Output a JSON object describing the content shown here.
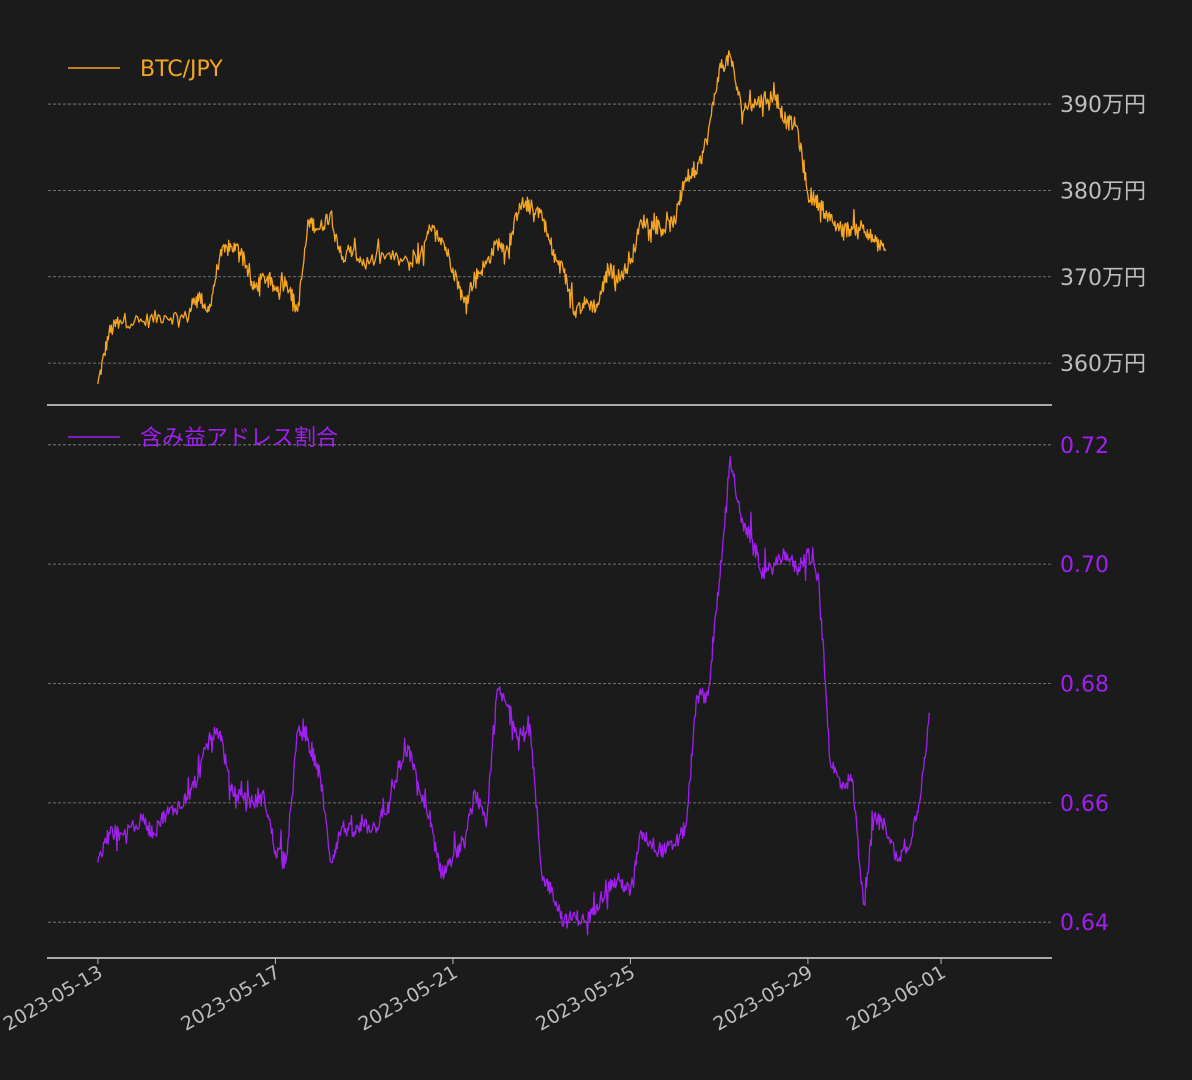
{
  "chart_data": [
    {
      "type": "line",
      "panel": "top",
      "color": "#f5a623",
      "series": [
        {
          "name": "BTC/JPY"
        }
      ],
      "yticks": [
        360,
        370,
        380,
        390
      ],
      "ytick_labels": [
        "360万円",
        "370万円",
        "380万円",
        "390万円"
      ],
      "ylim": [
        355.5,
        399.5
      ],
      "anchors": [
        [
          "2023-05-13",
          357.6
        ],
        [
          "2023-05-13T06:00",
          363.5
        ],
        [
          "2023-05-13T12:00",
          365.0
        ],
        [
          "2023-05-14",
          364.8
        ],
        [
          "2023-05-14T12:00",
          365.5
        ],
        [
          "2023-05-15",
          365.2
        ],
        [
          "2023-05-15T06:00",
          368.0
        ],
        [
          "2023-05-15T12:00",
          366.0
        ],
        [
          "2023-05-15T18:00",
          372.5
        ],
        [
          "2023-05-16",
          373.5
        ],
        [
          "2023-05-16T06:00",
          373.0
        ],
        [
          "2023-05-16T12:00",
          368.5
        ],
        [
          "2023-05-16T18:00",
          370.0
        ],
        [
          "2023-05-17",
          368.5
        ],
        [
          "2023-05-17T06:00",
          369.5
        ],
        [
          "2023-05-17T12:00",
          366.0
        ],
        [
          "2023-05-17T18:00",
          376.5
        ],
        [
          "2023-05-18",
          375.5
        ],
        [
          "2023-05-18T06:00",
          377.5
        ],
        [
          "2023-05-18T12:00",
          372.0
        ],
        [
          "2023-05-18T18:00",
          373.0
        ],
        [
          "2023-05-19",
          371.5
        ],
        [
          "2023-05-19T12:00",
          372.5
        ],
        [
          "2023-05-20",
          371.5
        ],
        [
          "2023-05-20T06:00",
          372.0
        ],
        [
          "2023-05-20T12:00",
          375.5
        ],
        [
          "2023-05-20T18:00",
          374.5
        ],
        [
          "2023-05-21",
          371.0
        ],
        [
          "2023-05-21T06:00",
          367.0
        ],
        [
          "2023-05-21T12:00",
          370.0
        ],
        [
          "2023-05-21T18:00",
          371.5
        ],
        [
          "2023-05-22",
          374.0
        ],
        [
          "2023-05-22T06:00",
          373.0
        ],
        [
          "2023-05-22T12:00",
          378.5
        ],
        [
          "2023-05-22T18:00",
          378.0
        ],
        [
          "2023-05-23",
          377.5
        ],
        [
          "2023-05-23T06:00",
          372.5
        ],
        [
          "2023-05-23T12:00",
          370.5
        ],
        [
          "2023-05-23T18:00",
          366.0
        ],
        [
          "2023-05-24",
          367.0
        ],
        [
          "2023-05-24T06:00",
          366.5
        ],
        [
          "2023-05-24T12:00",
          371.0
        ],
        [
          "2023-05-24T18:00",
          370.0
        ],
        [
          "2023-05-25",
          371.5
        ],
        [
          "2023-05-25T06:00",
          376.5
        ],
        [
          "2023-05-25T12:00",
          376.0
        ],
        [
          "2023-05-25T18:00",
          375.5
        ],
        [
          "2023-05-26",
          376.5
        ],
        [
          "2023-05-26T06:00",
          381.5
        ],
        [
          "2023-05-26T12:00",
          382.0
        ],
        [
          "2023-05-26T18:00",
          386.5
        ],
        [
          "2023-05-27",
          394.0
        ],
        [
          "2023-05-27T06:00",
          395.5
        ],
        [
          "2023-05-27T12:00",
          389.5
        ],
        [
          "2023-05-27T18:00",
          390.0
        ],
        [
          "2023-05-28",
          390.5
        ],
        [
          "2023-05-28T06:00",
          391.0
        ],
        [
          "2023-05-28T12:00",
          388.0
        ],
        [
          "2023-05-28T18:00",
          387.5
        ],
        [
          "2023-05-29",
          379.5
        ],
        [
          "2023-05-29T06:00",
          378.5
        ],
        [
          "2023-05-29T12:00",
          376.5
        ],
        [
          "2023-05-29T18:00",
          375.5
        ],
        [
          "2023-05-30",
          375.5
        ],
        [
          "2023-05-30T06:00",
          376.0
        ],
        [
          "2023-05-30T12:00",
          374.0
        ],
        [
          "2023-05-30T18:00",
          373.0
        ]
      ]
    },
    {
      "type": "line",
      "panel": "bottom",
      "color": "#a020f0",
      "series": [
        {
          "name": "含み益アドレス割合"
        }
      ],
      "yticks": [
        0.64,
        0.66,
        0.68,
        0.7,
        0.72
      ],
      "ytick_labels": [
        "0.64",
        "0.66",
        "0.68",
        "0.70",
        "0.72"
      ],
      "ylim": [
        0.6345,
        0.7255
      ],
      "anchors": [
        [
          "2023-05-13",
          0.65
        ],
        [
          "2023-05-13T06:00",
          0.655
        ],
        [
          "2023-05-13T12:00",
          0.655
        ],
        [
          "2023-05-14",
          0.657
        ],
        [
          "2023-05-14T06:00",
          0.655
        ],
        [
          "2023-05-14T12:00",
          0.658
        ],
        [
          "2023-05-14T18:00",
          0.659
        ],
        [
          "2023-05-15",
          0.661
        ],
        [
          "2023-05-15T06:00",
          0.664
        ],
        [
          "2023-05-15T12:00",
          0.671
        ],
        [
          "2023-05-15T18:00",
          0.672
        ],
        [
          "2023-05-16",
          0.662
        ],
        [
          "2023-05-16T06:00",
          0.661
        ],
        [
          "2023-05-16T12:00",
          0.66
        ],
        [
          "2023-05-16T18:00",
          0.661
        ],
        [
          "2023-05-17",
          0.652
        ],
        [
          "2023-05-17T06:00",
          0.651
        ],
        [
          "2023-05-17T12:00",
          0.672
        ],
        [
          "2023-05-17T18:00",
          0.67
        ],
        [
          "2023-05-18",
          0.665
        ],
        [
          "2023-05-18T06:00",
          0.65
        ],
        [
          "2023-05-18T12:00",
          0.656
        ],
        [
          "2023-05-18T18:00",
          0.655
        ],
        [
          "2023-05-19",
          0.656
        ],
        [
          "2023-05-19T06:00",
          0.656
        ],
        [
          "2023-05-19T12:00",
          0.658
        ],
        [
          "2023-05-19T18:00",
          0.665
        ],
        [
          "2023-05-20",
          0.669
        ],
        [
          "2023-05-20T06:00",
          0.662
        ],
        [
          "2023-05-20T12:00",
          0.656
        ],
        [
          "2023-05-20T18:00",
          0.648
        ],
        [
          "2023-05-21",
          0.651
        ],
        [
          "2023-05-21T06:00",
          0.653
        ],
        [
          "2023-05-21T12:00",
          0.662
        ],
        [
          "2023-05-21T18:00",
          0.656
        ],
        [
          "2023-05-22",
          0.679
        ],
        [
          "2023-05-22T06:00",
          0.676
        ],
        [
          "2023-05-22T12:00",
          0.671
        ],
        [
          "2023-05-22T18:00",
          0.672
        ],
        [
          "2023-05-23",
          0.648
        ],
        [
          "2023-05-23T06:00",
          0.645
        ],
        [
          "2023-05-23T12:00",
          0.64
        ],
        [
          "2023-05-23T18:00",
          0.641
        ],
        [
          "2023-05-24",
          0.64
        ],
        [
          "2023-05-24T06:00",
          0.643
        ],
        [
          "2023-05-24T12:00",
          0.646
        ],
        [
          "2023-05-24T18:00",
          0.647
        ],
        [
          "2023-05-25",
          0.645
        ],
        [
          "2023-05-25T06:00",
          0.655
        ],
        [
          "2023-05-25T12:00",
          0.653
        ],
        [
          "2023-05-25T18:00",
          0.652
        ],
        [
          "2023-05-26",
          0.653
        ],
        [
          "2023-05-26T06:00",
          0.656
        ],
        [
          "2023-05-26T12:00",
          0.678
        ],
        [
          "2023-05-26T18:00",
          0.678
        ],
        [
          "2023-05-27",
          0.697
        ],
        [
          "2023-05-27T06:00",
          0.718
        ],
        [
          "2023-05-27T12:00",
          0.707
        ],
        [
          "2023-05-27T18:00",
          0.704
        ],
        [
          "2023-05-28",
          0.698
        ],
        [
          "2023-05-28T06:00",
          0.7
        ],
        [
          "2023-05-28T12:00",
          0.702
        ],
        [
          "2023-05-28T18:00",
          0.699
        ],
        [
          "2023-05-29",
          0.702
        ],
        [
          "2023-05-29T06:00",
          0.697
        ],
        [
          "2023-05-29T12:00",
          0.667
        ],
        [
          "2023-05-29T18:00",
          0.663
        ],
        [
          "2023-05-30",
          0.664
        ],
        [
          "2023-05-30T06:00",
          0.643
        ],
        [
          "2023-05-30T12:00",
          0.658
        ],
        [
          "2023-05-30T18:00",
          0.656
        ],
        [
          "2023-05-31",
          0.651
        ],
        [
          "2023-05-31T06:00",
          0.652
        ],
        [
          "2023-05-31T12:00",
          0.66
        ],
        [
          "2023-05-31T18:00",
          0.675
        ]
      ]
    }
  ],
  "xaxis": {
    "range": [
      "2023-05-11T21:00",
      "2023-06-03T12:00"
    ],
    "ticks": [
      "2023-05-13",
      "2023-05-17",
      "2023-05-21",
      "2023-05-25",
      "2023-05-29",
      "2023-06-01"
    ],
    "tick_labels": [
      "2023-05-13",
      "2023-05-17",
      "2023-05-21",
      "2023-05-25",
      "2023-05-29",
      "2023-06-01"
    ]
  },
  "background": "#1b1b1b",
  "grid": true,
  "legend_placement": "top-left"
}
